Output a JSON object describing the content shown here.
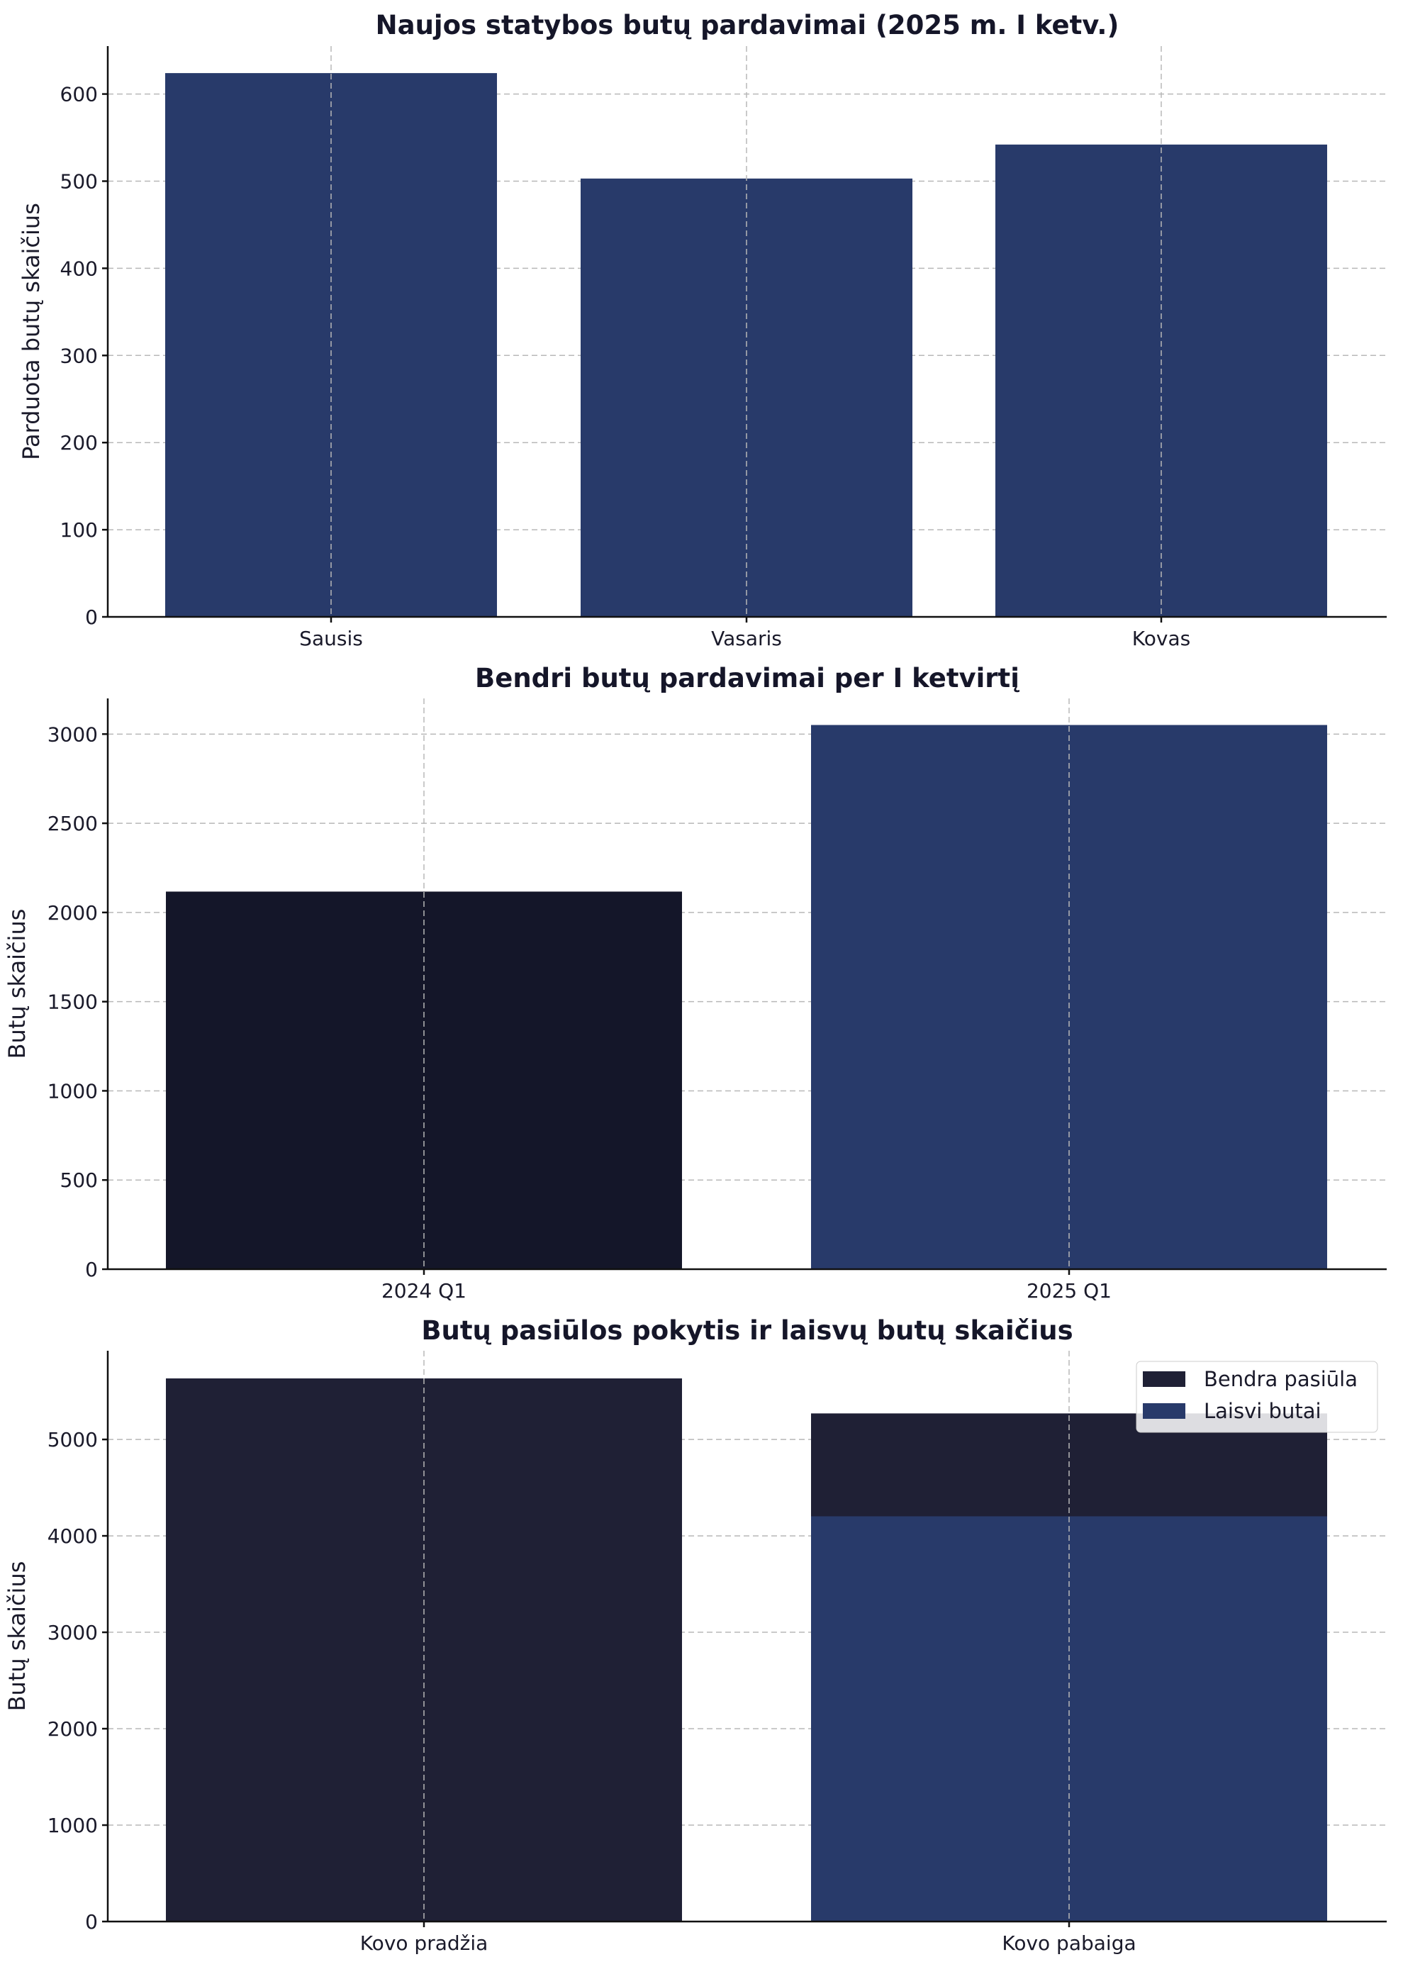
{
  "colors": {
    "navy": "#283a6a",
    "dark_navy": "#141629",
    "dark_gray_navy": "#1f2035"
  },
  "chart_data": [
    {
      "type": "bar",
      "title": "Naujos statybos butų pardavimai (2025 m. I ketv.)",
      "ylabel": "Parduota butų skaičius",
      "categories": [
        "Sausis",
        "Vasaris",
        "Kovas"
      ],
      "values": [
        624,
        503,
        542
      ],
      "ylim": [
        0,
        655
      ],
      "yticks": [
        0,
        100,
        200,
        300,
        400,
        500,
        600
      ],
      "bar_colors": [
        "#283a6a",
        "#283a6a",
        "#283a6a"
      ],
      "grid": true
    },
    {
      "type": "bar",
      "title": "Bendri butų pardavimai per I ketvirtį",
      "ylabel": "Butų skaičius",
      "categories": [
        "2024 Q1",
        "2025 Q1"
      ],
      "values": [
        2117,
        3051
      ],
      "ylim": [
        0,
        3200
      ],
      "yticks": [
        0,
        500,
        1000,
        1500,
        2000,
        2500,
        3000
      ],
      "bar_colors": [
        "#141629",
        "#283a6a"
      ],
      "grid": true
    },
    {
      "type": "bar",
      "title": "Butų pasiūlos pokytis ir laisvų butų skaičius",
      "ylabel": "Butų skaičius",
      "categories": [
        "Kovo pradžia",
        "Kovo pabaiga"
      ],
      "series": [
        {
          "name": "Bendra pasiūla",
          "values": [
            5633,
            5270
          ],
          "color": "#1f2035"
        },
        {
          "name": "Laisvi butai",
          "values": [
            null,
            4203
          ],
          "color": "#283a6a"
        }
      ],
      "ylim": [
        0,
        5920
      ],
      "yticks": [
        0,
        1000,
        2000,
        3000,
        4000,
        5000
      ],
      "legend": "top-right",
      "grid": true
    }
  ]
}
